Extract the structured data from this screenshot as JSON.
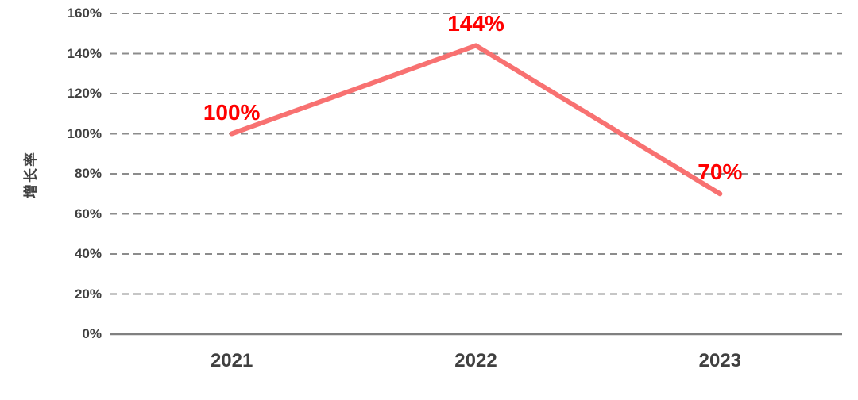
{
  "chart_data": {
    "type": "line",
    "title": "",
    "categories": [
      "2021",
      "2022",
      "2023"
    ],
    "values": [
      100,
      144,
      70
    ],
    "data_labels": [
      "100%",
      "144%",
      "70%"
    ],
    "series": [
      {
        "name": "增长率",
        "values": [
          100,
          144,
          70
        ]
      }
    ],
    "xlabel": "",
    "ylabel": "增长率",
    "ylim": [
      0,
      160
    ],
    "yticks": [
      0,
      20,
      40,
      60,
      80,
      100,
      120,
      140,
      160
    ],
    "ytick_labels": [
      "0%",
      "20%",
      "40%",
      "60%",
      "80%",
      "100%",
      "120%",
      "140%",
      "160%"
    ],
    "grid": "horizontal dashed gridlines, solid baseline axis",
    "legend": "none",
    "marker": "none",
    "colors": {
      "line": "#F87171",
      "data_label": "#FF0000",
      "tick_label": "#404040",
      "gridline": "#8C8C8C",
      "axis_line": "#808080",
      "background": "#FFFFFF"
    }
  }
}
